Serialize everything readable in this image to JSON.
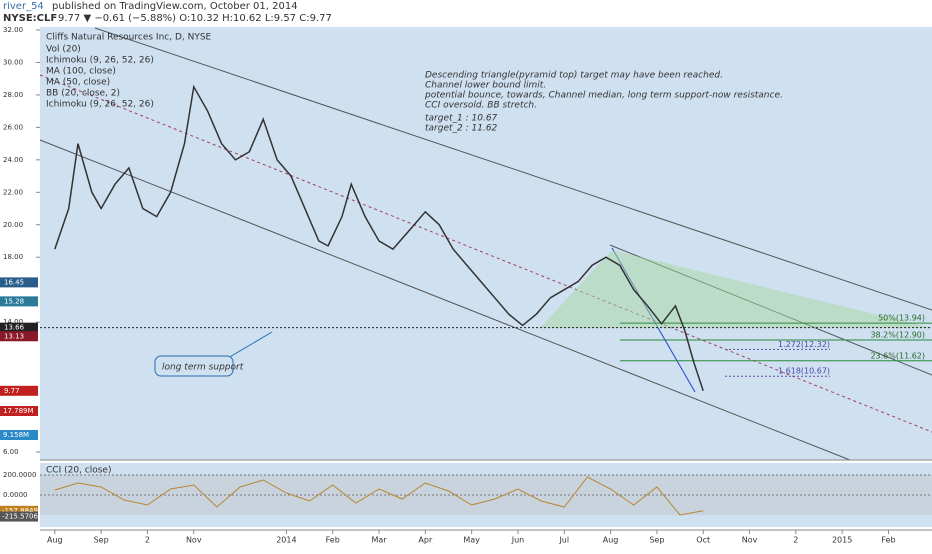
{
  "header": {
    "user": "river_54",
    "published": "published on TradingView.com, October 01, 2014",
    "symbol": "NYSE:CLF",
    "quote": "9.77 ▼ −0.61 (−5.88%) O:10.32 H:10.62 L:9.57 C:9.77"
  },
  "chart_data": [
    {
      "type": "line",
      "title": "Cliffs Natural Resources Inc, D, NYSE",
      "indicators": [
        "Vol (20)",
        "Ichimoku (9, 26, 52, 26)",
        "MA (100, close)",
        "MA (50, close)",
        "BB (20, close, 2)",
        "Ichimoku (9, 26, 52, 26)"
      ],
      "annotation": [
        "Descending triangle(pyramid top) target may have been reached.",
        "Channel lower bound limit.",
        "potential bounce, towards, Channel median, long term support-now resistance.",
        "CCI oversold. BB stretch."
      ],
      "targets": [
        "target_1 :  10.67",
        "target_2 :  11.62"
      ],
      "note": "long term support",
      "color": "#333333",
      "x": [
        0,
        0.3,
        0.5,
        0.8,
        1.0,
        1.3,
        1.6,
        1.9,
        2.2,
        2.5,
        2.8,
        3.0,
        3.3,
        3.6,
        3.9,
        4.2,
        4.5,
        4.8,
        5.1,
        5.4,
        5.7,
        5.9,
        6.2,
        6.4,
        6.7,
        7.0,
        7.3,
        7.7,
        8.0,
        8.3,
        8.6,
        8.9,
        9.2,
        9.5,
        9.8,
        10.1,
        10.4,
        10.7,
        11.0,
        11.3,
        11.6,
        11.9,
        12.2,
        12.5,
        12.8,
        13.1,
        13.4,
        13.6,
        13.8,
        14.0
      ],
      "values": [
        18.5,
        21,
        25,
        22,
        21,
        22.5,
        23.5,
        21,
        20.5,
        22,
        25,
        28.5,
        27,
        25,
        24,
        24.5,
        26.5,
        24,
        23,
        21,
        19,
        18.7,
        20.5,
        22.5,
        20.5,
        19,
        18.5,
        19.8,
        20.8,
        20,
        18.5,
        17.5,
        16.5,
        15.5,
        14.5,
        13.8,
        14.5,
        15.5,
        16,
        16.5,
        17.5,
        18,
        17.5,
        16,
        15,
        13.9,
        15,
        13.5,
        11.5,
        9.77
      ],
      "fib": [
        {
          "value": 13.94,
          "label": "50%(13.94)"
        },
        {
          "value": 12.9,
          "label": "38.2%(12.90)"
        },
        {
          "value": 11.62,
          "label": "23.6%(11.62)"
        },
        {
          "value": 12.32,
          "label": "1.272(12.32)"
        },
        {
          "value": 10.67,
          "label": "1.618(10.67)"
        }
      ],
      "price_markers": [
        {
          "value": 16.45,
          "label": "16.45"
        },
        {
          "value": 15.28,
          "label": "15.28"
        },
        {
          "value": 13.66,
          "label": "13.66"
        },
        {
          "value": 13.13,
          "label": "13.13"
        },
        {
          "value": 9.77,
          "label": "9.77"
        }
      ],
      "volume_markers": [
        "17.789M",
        "9.158M"
      ],
      "ylim": [
        6,
        32
      ],
      "yticks": [
        {
          "value": 32,
          "label": "32.00"
        },
        {
          "value": 30,
          "label": "30.00"
        },
        {
          "value": 28,
          "label": "28.00"
        },
        {
          "value": 26,
          "label": "26.00"
        },
        {
          "value": 24,
          "label": "24.00"
        },
        {
          "value": 22,
          "label": "22.00"
        },
        {
          "value": 20,
          "label": "20.00"
        },
        {
          "value": 18,
          "label": "18.00"
        },
        {
          "value": 14,
          "label": "14.00"
        },
        {
          "value": 6,
          "label": "6.00"
        }
      ],
      "xlim": [
        -0.32,
        18.94
      ],
      "xticks": [
        {
          "value": 0,
          "label": "Aug"
        },
        {
          "value": 1,
          "label": "Sep"
        },
        {
          "value": 2,
          "label": "2"
        },
        {
          "value": 3,
          "label": "Nov"
        },
        {
          "value": 5,
          "label": "2014"
        },
        {
          "value": 6,
          "label": "Feb"
        },
        {
          "value": 7,
          "label": "Mar"
        },
        {
          "value": 8,
          "label": "Apr"
        },
        {
          "value": 9,
          "label": "May"
        },
        {
          "value": 10,
          "label": "Jun"
        },
        {
          "value": 11,
          "label": "Jul"
        },
        {
          "value": 12,
          "label": "Aug"
        },
        {
          "value": 13,
          "label": "Sep"
        },
        {
          "value": 14,
          "label": "Oct"
        },
        {
          "value": 15,
          "label": "Nov"
        },
        {
          "value": 16,
          "label": "2"
        },
        {
          "value": 17,
          "label": "2015"
        },
        {
          "value": 18,
          "label": "Feb"
        }
      ]
    },
    {
      "type": "line",
      "title": "CCI (20, close)",
      "color": "#b8862e",
      "x": [
        0,
        0.5,
        1,
        1.5,
        2,
        2.5,
        3,
        3.5,
        4,
        4.5,
        5,
        5.5,
        6,
        6.5,
        7,
        7.5,
        8,
        8.5,
        9,
        9.5,
        10,
        10.5,
        11,
        11.5,
        12,
        12.5,
        13,
        13.5,
        14
      ],
      "values": [
        50,
        120,
        80,
        -50,
        -100,
        60,
        100,
        -120,
        80,
        150,
        20,
        -60,
        100,
        -80,
        60,
        -40,
        120,
        40,
        -100,
        -40,
        60,
        -60,
        -120,
        180,
        60,
        -100,
        80,
        -200,
        -157.8849
      ],
      "ylim": [
        -320,
        320
      ],
      "yticks": [
        {
          "value": 200,
          "label": "200.0000"
        },
        {
          "value": 0,
          "label": "0.0000"
        }
      ],
      "markers": [
        {
          "value": -157.8849,
          "label": "-157.8849"
        },
        {
          "value": -215.5706,
          "label": "-215.5706"
        }
      ]
    }
  ]
}
